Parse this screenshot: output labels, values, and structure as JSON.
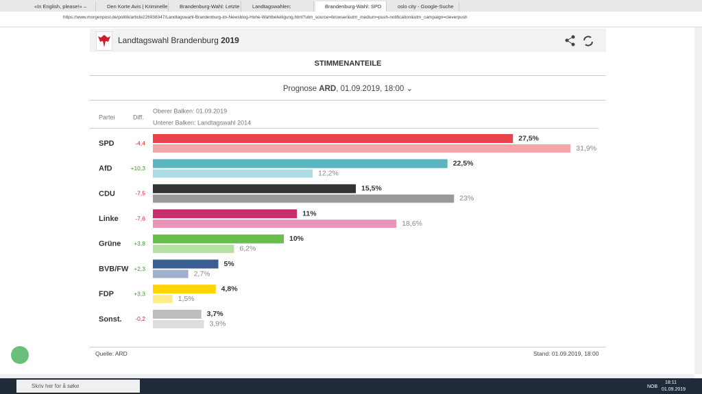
{
  "browser": {
    "tabs": [
      "«In English, please!» – Docu",
      "Den Korte Avis | Kriminelle u",
      "Brandenburg-Wahl: Letzte U",
      "Landtagswahlen: Wahlbeteil",
      "Brandenburg-Wahl: SPD",
      "oslo city - Google-Suche"
    ],
    "url": "https://www.morgenpost.de/politik/article226938347/Landtagswahl-Brandenburg-im-Newsblog-Hohe-Wahlbeteiligung.html?utm_source=browser&utm_medium=push-notification&utm_campaign=cleverpush"
  },
  "header": {
    "title": "Landtagswahl Brandenburg",
    "year": "2019"
  },
  "section_title": "STIMMENANTEILE",
  "selector": {
    "prefix": "Prognose",
    "source": "ARD",
    "date": ", 01.09.2019, 18:00"
  },
  "chart_data": {
    "type": "bar",
    "column_labels": [
      "Partei",
      "Diff."
    ],
    "categories": [
      "SPD",
      "AfD",
      "CDU",
      "Linke",
      "Grüne",
      "BVB/FW",
      "FDP",
      "Sonst."
    ],
    "diffs": [
      "-4,4",
      "+10,3",
      "-7,5",
      "-7,6",
      "+3,8",
      "+2,3",
      "+3,3",
      "-0,2"
    ],
    "series": [
      {
        "name": "Oberer Balken: 01.09.2019",
        "colors": [
          "#e8434b",
          "#5db5c1",
          "#333333",
          "#c52f6b",
          "#6abf4b",
          "#3b5e92",
          "#ffd500",
          "#bdbdbd"
        ],
        "values": [
          27.5,
          22.5,
          15.5,
          11,
          10,
          5,
          4.8,
          3.7
        ],
        "value_labels": [
          "27,5%",
          "22,5%",
          "15,5%",
          "11%",
          "10%",
          "5%",
          "4,8%",
          "3,7%"
        ]
      },
      {
        "name": "Unterer Balken: Landtagswahl 2014",
        "colors": [
          "#f5a5a8",
          "#acdde4",
          "#999999",
          "#e696b8",
          "#b5e0a2",
          "#9eb0cc",
          "#ffec8c",
          "#dedede"
        ],
        "values": [
          31.9,
          12.2,
          23,
          18.6,
          6.2,
          2.7,
          1.5,
          3.9
        ],
        "value_labels": [
          "31,9%",
          "12,2%",
          "23%",
          "18,6%",
          "6,2%",
          "2,7%",
          "1,5%",
          "3,9%"
        ]
      }
    ]
  },
  "footer": {
    "source": "Quelle: ARD",
    "stand": "Stand: 01.09.2019, 18:00"
  },
  "taskbar": {
    "search": "Skriv her for å søke",
    "lang": "NOB",
    "time": "18:11",
    "date": "01.09.2019"
  }
}
